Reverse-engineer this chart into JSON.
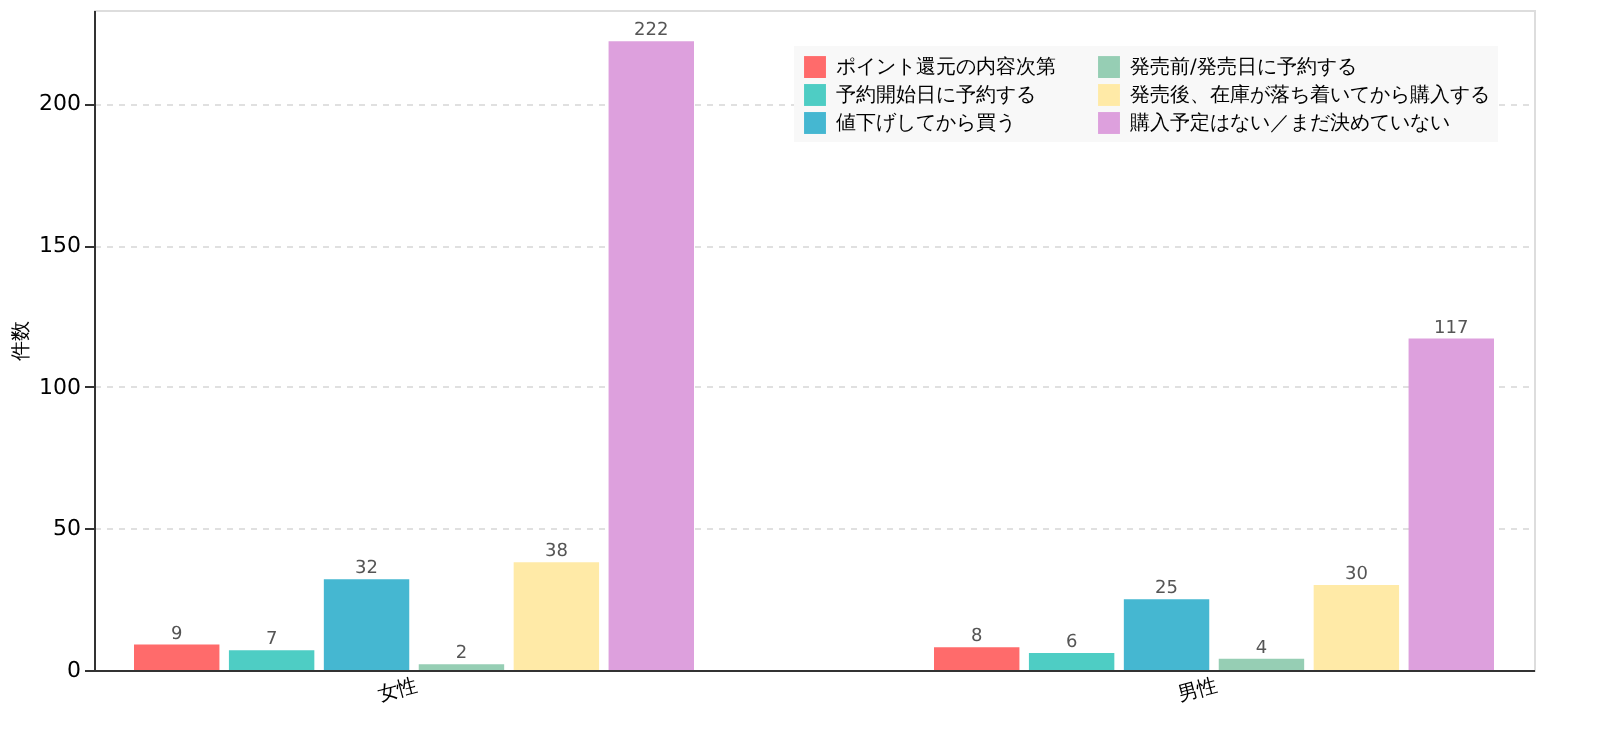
{
  "chart_data": {
    "type": "bar",
    "categories": [
      "女性",
      "男性"
    ],
    "ylabel": "件数",
    "ylim": [
      0,
      233
    ],
    "yticks": [
      0,
      50,
      100,
      150,
      200
    ],
    "grid": "y",
    "legend": "top right",
    "data_labels": true,
    "series": [
      {
        "name": "ポイント還元の内容次第",
        "color": "#ff6b6b",
        "values": [
          9,
          8
        ]
      },
      {
        "name": "予約開始日に予約する",
        "color": "#4ecdc4",
        "values": [
          7,
          6
        ]
      },
      {
        "name": "値下げしてから買う",
        "color": "#45b7d1",
        "values": [
          32,
          25
        ]
      },
      {
        "name": "発売前/発売日に予約する",
        "color": "#96ceb4",
        "values": [
          2,
          4
        ]
      },
      {
        "name": "発売後、在庫が落ち着いてから購入する",
        "color": "#ffeaa7",
        "values": [
          38,
          30
        ]
      },
      {
        "name": "購入予定はない／まだ決めていない",
        "color": "#dda0dd",
        "values": [
          222,
          117
        ]
      }
    ]
  }
}
